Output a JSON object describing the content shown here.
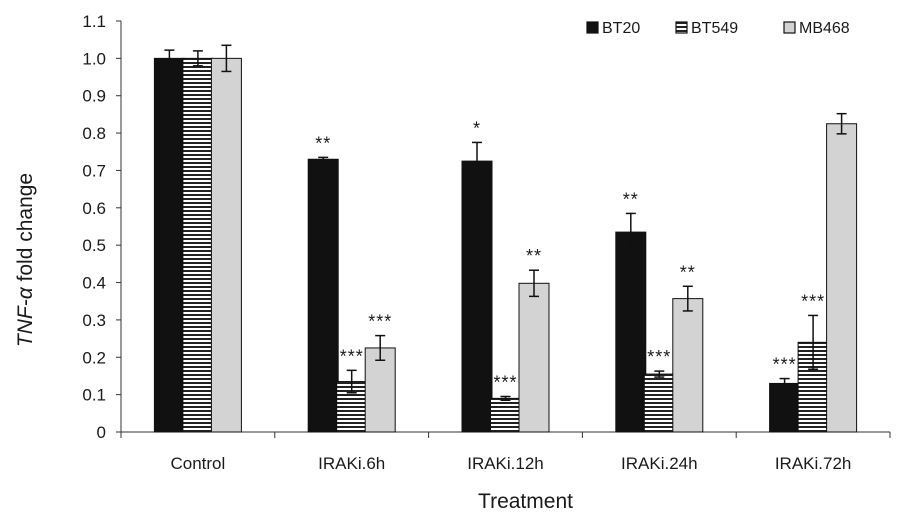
{
  "chart_data": {
    "type": "bar",
    "xlabel": "Treatment",
    "ylabel_italic": "TNF-α",
    "ylabel_rest": " fold change",
    "ylim": [
      0,
      1.1
    ],
    "yticks": [
      "0",
      "0.1",
      "0.2",
      "0.3",
      "0.4",
      "0.5",
      "0.6",
      "0.7",
      "0.8",
      "0.9",
      "1.0",
      "1.1"
    ],
    "grid": false,
    "legend_position": "top-right",
    "categories": [
      "Control",
      "IRAKi.6h",
      "IRAKi.12h",
      "IRAKi.24h",
      "IRAKi.72h"
    ],
    "series": [
      {
        "name": "BT20",
        "fill": "#111111",
        "pattern": "solid",
        "values": [
          1.0,
          0.73,
          0.725,
          0.535,
          0.13
        ],
        "errors": [
          0.022,
          0.005,
          0.05,
          0.05,
          0.013
        ],
        "significance": [
          "",
          "**",
          "*",
          "**",
          "***"
        ]
      },
      {
        "name": "BT549",
        "fill": "#ffffff",
        "pattern": "horizontal-stripes",
        "values": [
          1.0,
          0.135,
          0.09,
          0.155,
          0.24
        ],
        "errors": [
          0.02,
          0.03,
          0.005,
          0.008,
          0.072
        ],
        "significance": [
          "",
          "***",
          "***",
          "***",
          "***"
        ]
      },
      {
        "name": "MB468",
        "fill": "#d3d3d3",
        "pattern": "solid",
        "values": [
          1.0,
          0.225,
          0.398,
          0.357,
          0.825
        ],
        "errors": [
          0.035,
          0.033,
          0.035,
          0.033,
          0.027
        ],
        "significance": [
          "",
          "***",
          "**",
          "**",
          ""
        ]
      }
    ]
  }
}
